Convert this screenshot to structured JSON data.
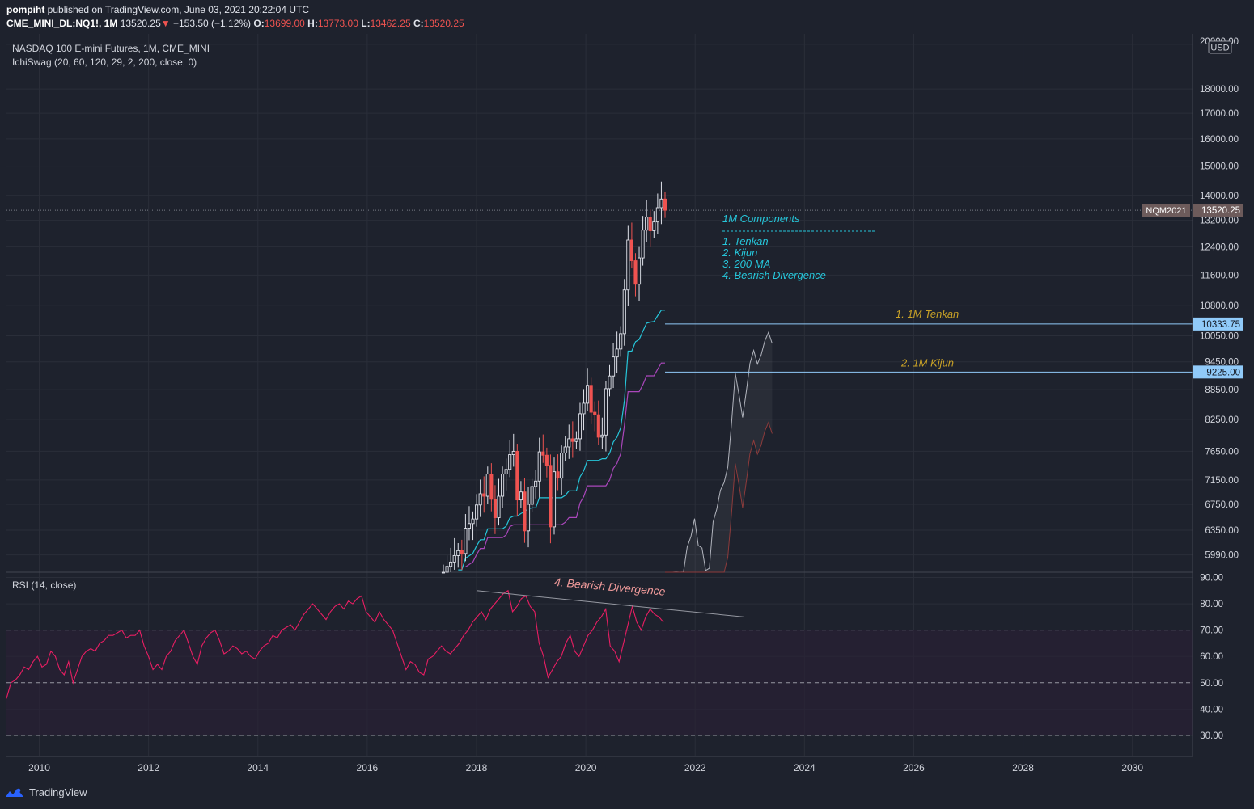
{
  "header": {
    "author": "pompiht",
    "published_text": "published on TradingView.com, June 03, 2021 20:22:04 UTC",
    "symbol": "CME_MINI_DL:NQ1!, 1M",
    "last": "13520.25",
    "change_arrow": "▼",
    "change": "−153.50 (−1.12%)",
    "o_label": "O:",
    "o_value": "13699.00",
    "h_label": "H:",
    "h_value": "13773.00",
    "l_label": "L:",
    "l_value": "13462.25",
    "c_label": "C:",
    "c_value": "13520.25"
  },
  "legend": {
    "main_title": "NASDAQ 100 E-mini Futures, 1M, CME_MINI",
    "indicator": "IchiSwag (20, 60, 120, 29, 2, 200, close, 0)",
    "rsi_title": "RSI (14, close)"
  },
  "annotations": {
    "components_title": "1M Components",
    "components": [
      "1. Tenkan",
      "2. Kijun",
      "3. 200 MA",
      "4. Bearish Divergence"
    ],
    "tenkan_label": "1. 1M Tenkan",
    "kijun_label": "2. 1M Kijun",
    "divergence_label": "4. Bearish Divergence"
  },
  "price_axis": {
    "currency": "USD",
    "ticks": [
      "20000.00",
      "18000.00",
      "17000.00",
      "16000.00",
      "15000.00",
      "14000.00",
      "13200.00",
      "12400.00",
      "11600.00",
      "10800.00",
      "10050.00",
      "9450.00",
      "8850.00",
      "8250.00",
      "7650.00",
      "7150.00",
      "6750.00",
      "6350.00",
      "5990.00"
    ],
    "last_badge_symbol": "NQM2021",
    "last_badge_value": "13520.25",
    "tenkan_badge": "10333.75",
    "kijun_badge": "9225.00"
  },
  "rsi_axis": {
    "ticks": [
      "90.00",
      "80.00",
      "70.00",
      "60.00",
      "50.00",
      "40.00",
      "30.00"
    ]
  },
  "time_axis": {
    "ticks": [
      "2010",
      "2012",
      "2014",
      "2016",
      "2018",
      "2020",
      "2022",
      "2024",
      "2026",
      "2028",
      "2030"
    ]
  },
  "footer": {
    "brand": "TradingView"
  },
  "colors": {
    "background": "#1e222d",
    "grid": "#2a2e39",
    "up": "#e0e3eb",
    "down": "#ef5350",
    "tenkan": "#26c6da",
    "kijun": "#ab47bc",
    "rsi": "#e91e63",
    "cloud_edge": "#b2b5be",
    "annotation_cyan": "#26c6da",
    "annotation_gold": "#c9a227",
    "divergence": "#ef9a9a"
  },
  "chart_data": {
    "type": "candlestick",
    "title": "NASDAQ 100 E-mini Futures, 1M, CME_MINI",
    "interval": "1M",
    "scale": "log",
    "ylim": [
      5750,
      20500
    ],
    "xlim": [
      2009.4,
      2031.1
    ],
    "candles_xrange": [
      "2017-04",
      "2021-06"
    ],
    "close_series": [
      5750,
      5830,
      5890,
      5980,
      6050,
      6010,
      6380,
      6450,
      6520,
      6740,
      6920,
      6880,
      7250,
      6830,
      6540,
      6880,
      7250,
      7330,
      7590,
      7650,
      6820,
      6950,
      6340,
      6750,
      7040,
      7130,
      7640,
      7580,
      7400,
      6400,
      7290,
      7180,
      7620,
      7730,
      7880,
      7830,
      7880,
      8360,
      8570,
      8940,
      8390,
      8340,
      7910,
      7950,
      8870,
      9140,
      9560,
      9740,
      10100,
      11200,
      12600,
      12000,
      11350,
      12080,
      12900,
      13300,
      12880,
      13150,
      13600,
      13880,
      13520
    ],
    "last": 13520.25,
    "lines": [
      {
        "name": "1M Tenkan",
        "value": 10333.75
      },
      {
        "name": "1M Kijun",
        "value": 9225.0
      }
    ],
    "rsi": {
      "name": "RSI (14, close)",
      "range": [
        22,
        92
      ],
      "bands": [
        30,
        50,
        70
      ],
      "start_year": 2009.4,
      "end_year": 2021.42,
      "values": [
        44,
        50,
        51,
        53,
        56,
        55,
        58,
        60,
        56,
        57,
        62,
        60,
        55,
        53,
        58,
        50,
        55,
        60,
        62,
        63,
        62,
        65,
        66,
        68,
        68,
        69,
        70,
        67,
        68,
        68,
        70,
        64,
        60,
        55,
        57,
        55,
        60,
        62,
        66,
        68,
        70,
        65,
        60,
        57,
        64,
        67,
        69,
        70,
        66,
        61,
        62,
        64,
        63,
        61,
        62,
        60,
        59,
        62,
        64,
        65,
        68,
        67,
        70,
        71,
        72,
        70,
        73,
        76,
        78,
        80,
        78,
        76,
        74,
        77,
        79,
        80,
        78,
        81,
        80,
        82,
        83,
        77,
        75,
        73,
        77,
        74,
        72,
        70,
        65,
        60,
        55,
        58,
        57,
        54,
        53,
        59,
        60,
        62,
        64,
        62,
        61,
        63,
        65,
        68,
        70,
        73,
        75,
        77,
        74,
        78,
        80,
        82,
        84,
        85,
        77,
        79,
        82,
        83,
        79,
        77,
        65,
        60,
        52,
        55,
        58,
        60,
        65,
        68,
        62,
        60,
        64,
        68,
        70,
        73,
        75,
        78,
        64,
        62,
        58,
        65,
        72,
        79,
        73,
        70,
        75,
        78,
        76,
        75,
        73
      ]
    },
    "divergence_line": {
      "from": [
        2018.0,
        85
      ],
      "to": [
        2022.9,
        75
      ],
      "label": "4. Bearish Divergence"
    }
  }
}
